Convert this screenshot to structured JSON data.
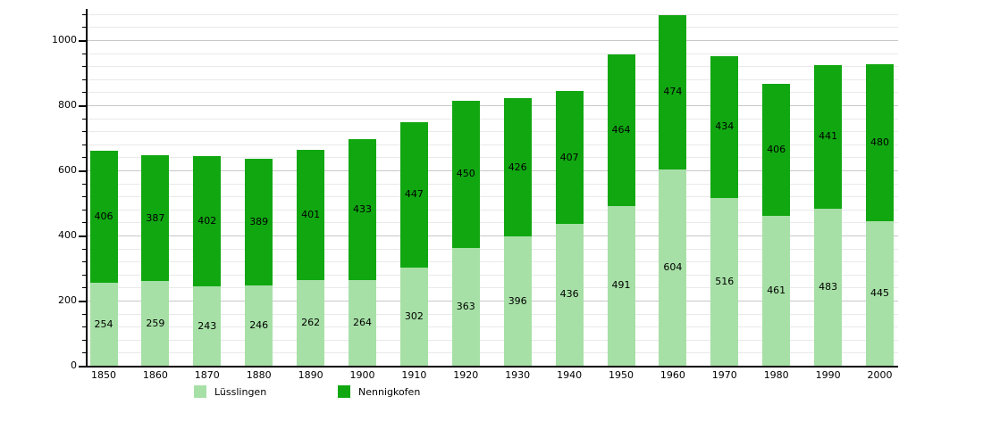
{
  "chart_data": {
    "type": "bar",
    "stacked": true,
    "title": "",
    "xlabel": "",
    "ylabel": "",
    "categories": [
      "1850",
      "1860",
      "1870",
      "1880",
      "1890",
      "1900",
      "1910",
      "1920",
      "1930",
      "1940",
      "1950",
      "1960",
      "1970",
      "1980",
      "1990",
      "2000"
    ],
    "series": [
      {
        "name": "Lüsslingen",
        "color": "#a6e0a6",
        "values": [
          254,
          259,
          243,
          246,
          262,
          264,
          302,
          363,
          396,
          436,
          491,
          604,
          516,
          461,
          483,
          445
        ]
      },
      {
        "name": "Nennigkofen",
        "color": "#11a711",
        "values": [
          406,
          387,
          402,
          389,
          401,
          433,
          447,
          450,
          426,
          407,
          464,
          474,
          434,
          406,
          441,
          480
        ]
      }
    ],
    "totals": [
      660,
      646,
      645,
      635,
      663,
      697,
      749,
      813,
      822,
      843,
      955,
      1078,
      950,
      867,
      924,
      925
    ],
    "ylim": [
      0,
      1080
    ],
    "y_major_ticks": [
      0,
      200,
      400,
      600,
      800,
      1000
    ],
    "y_minor_step": 40,
    "grid": true,
    "value_labels": true,
    "legend_position": "bottom"
  },
  "legend": {
    "items": [
      {
        "label": "Lüsslingen",
        "color": "#a6e0a6"
      },
      {
        "label": "Nennigkofen",
        "color": "#11a711"
      }
    ]
  },
  "colors": {
    "axis": "#000000",
    "grid_minor": "#e9e9e9",
    "grid_major": "#c8c8c8",
    "text": "#000000",
    "background": "#ffffff"
  }
}
